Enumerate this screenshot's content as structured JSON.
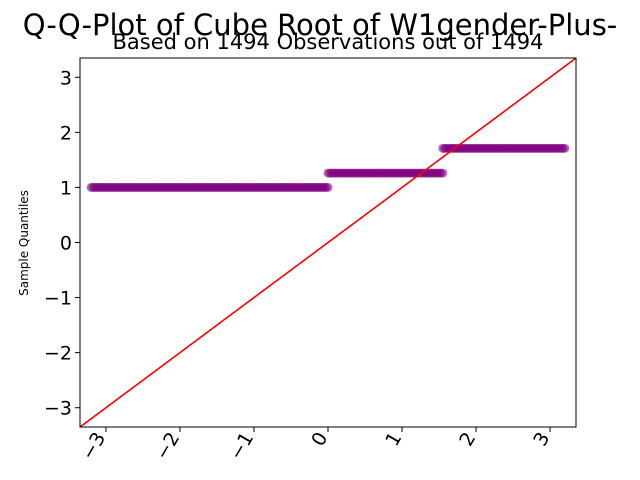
{
  "chart_data": {
    "type": "scatter",
    "title": "Q-Q-Plot of Cube Root of W1gender-Plus-",
    "subtitle": "Based on 1494 Observations out of 1494",
    "xlabel": "",
    "ylabel": "Sample Quantiles",
    "xlim": [
      -3.35,
      3.35
    ],
    "ylim": [
      -3.35,
      3.35
    ],
    "xticks": [
      -3,
      -2,
      -1,
      0,
      1,
      2,
      3
    ],
    "xtick_labels": [
      "−3",
      "−2",
      "−1",
      "0",
      "1",
      "2",
      "3"
    ],
    "yticks": [
      -3,
      -2,
      -1,
      0,
      1,
      2,
      3
    ],
    "ytick_labels": [
      "−3",
      "−2",
      "−1",
      "0",
      "1",
      "2",
      "3"
    ],
    "point_color": "#800080",
    "line_color": "#ff0000",
    "reference_line": {
      "slope": 1,
      "intercept": 0
    },
    "series": [
      {
        "x_start": -3.2,
        "x_end": 0.0,
        "y": 1.0
      },
      {
        "x_start": 0.0,
        "x_end": 1.55,
        "y": 1.26
      },
      {
        "x_start": 1.55,
        "x_end": 3.2,
        "y": 1.71
      }
    ]
  }
}
